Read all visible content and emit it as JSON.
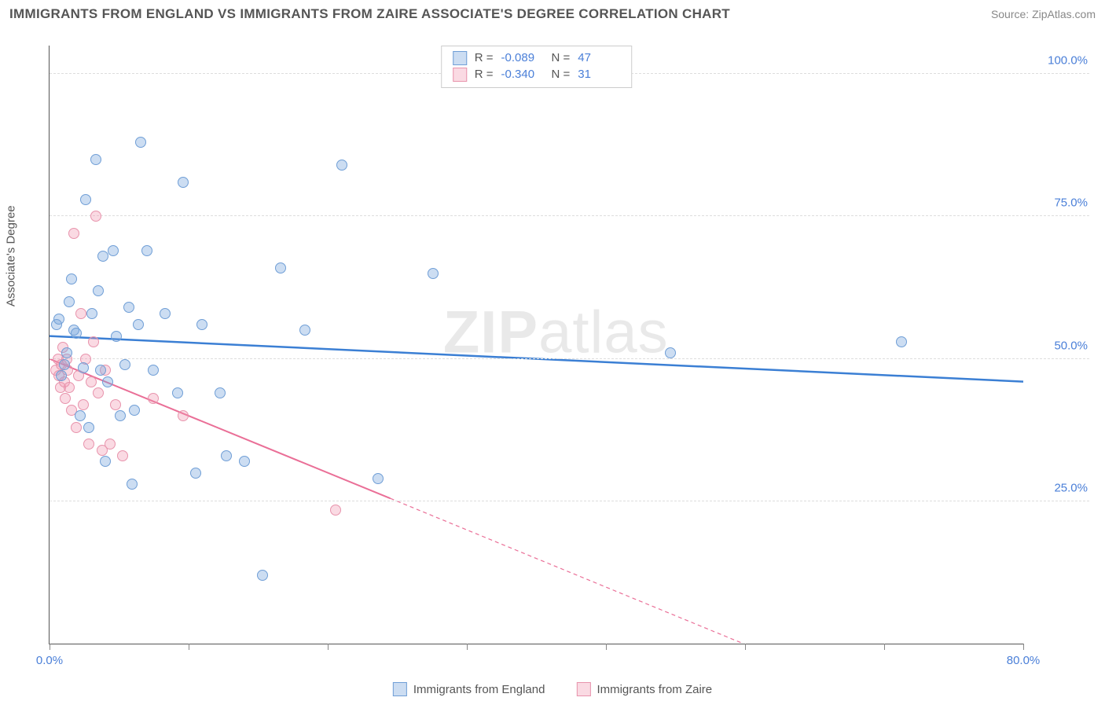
{
  "header": {
    "title": "IMMIGRANTS FROM ENGLAND VS IMMIGRANTS FROM ZAIRE ASSOCIATE'S DEGREE CORRELATION CHART",
    "source_label": "Source: ",
    "source_value": "ZipAtlas.com"
  },
  "axes": {
    "y_label": "Associate's Degree",
    "x_min": 0.0,
    "x_max": 80.0,
    "y_min": 0.0,
    "y_max": 105.0,
    "y_ticks": [
      {
        "v": 25.0,
        "label": "25.0%"
      },
      {
        "v": 50.0,
        "label": "50.0%"
      },
      {
        "v": 75.0,
        "label": "75.0%"
      },
      {
        "v": 100.0,
        "label": "100.0%"
      }
    ],
    "x_ticks": [
      {
        "v": 0.0,
        "label": "0.0%"
      },
      {
        "v": 11.43,
        "label": ""
      },
      {
        "v": 22.86,
        "label": ""
      },
      {
        "v": 34.29,
        "label": ""
      },
      {
        "v": 45.71,
        "label": ""
      },
      {
        "v": 57.14,
        "label": ""
      },
      {
        "v": 68.57,
        "label": ""
      },
      {
        "v": 80.0,
        "label": "80.0%"
      }
    ],
    "grid_color": "#dddddd",
    "axis_color": "#555555",
    "tick_label_color": "#4a7fd8"
  },
  "series": {
    "england": {
      "label": "Immigrants from England",
      "marker_fill": "rgba(120,165,220,0.38)",
      "marker_stroke": "#6f9ed6",
      "trend_color": "#3b7fd4",
      "trend_width": 2.5,
      "trend": {
        "x1": 0.0,
        "y1": 54.0,
        "x2": 80.0,
        "y2": 46.0,
        "dash": "none"
      },
      "R": "-0.089",
      "N": "47",
      "points": [
        [
          0.6,
          56
        ],
        [
          0.8,
          57
        ],
        [
          1.0,
          47
        ],
        [
          1.2,
          49
        ],
        [
          1.4,
          51
        ],
        [
          1.6,
          60
        ],
        [
          1.8,
          64
        ],
        [
          2.0,
          55
        ],
        [
          2.2,
          54.5
        ],
        [
          2.5,
          40
        ],
        [
          2.8,
          48.5
        ],
        [
          3.0,
          78
        ],
        [
          3.2,
          38
        ],
        [
          3.5,
          58
        ],
        [
          3.8,
          85
        ],
        [
          4.0,
          62
        ],
        [
          4.2,
          48
        ],
        [
          4.4,
          68
        ],
        [
          4.6,
          32
        ],
        [
          4.8,
          46
        ],
        [
          5.2,
          69
        ],
        [
          5.5,
          54
        ],
        [
          5.8,
          40
        ],
        [
          6.2,
          49
        ],
        [
          6.5,
          59
        ],
        [
          7.0,
          41
        ],
        [
          7.3,
          56
        ],
        [
          7.5,
          88
        ],
        [
          6.8,
          28
        ],
        [
          8.0,
          69
        ],
        [
          8.5,
          48
        ],
        [
          9.5,
          58
        ],
        [
          10.5,
          44
        ],
        [
          11.0,
          81
        ],
        [
          12.0,
          30
        ],
        [
          12.5,
          56
        ],
        [
          14.0,
          44
        ],
        [
          14.5,
          33
        ],
        [
          16.0,
          32
        ],
        [
          17.5,
          12
        ],
        [
          19.0,
          66
        ],
        [
          21.0,
          55
        ],
        [
          24.0,
          84
        ],
        [
          27.0,
          29
        ],
        [
          31.5,
          65
        ],
        [
          51.0,
          51
        ],
        [
          70.0,
          53
        ]
      ]
    },
    "zaire": {
      "label": "Immigrants from Zaire",
      "marker_fill": "rgba(240,150,175,0.35)",
      "marker_stroke": "#e893ac",
      "trend_color": "#ea6f97",
      "trend_width": 2,
      "trend_solid": {
        "x1": 0.0,
        "y1": 50.0,
        "x2": 28.0,
        "y2": 25.5
      },
      "trend_dash": {
        "x1": 28.0,
        "y1": 25.5,
        "x2": 57.0,
        "y2": 0.0
      },
      "R": "-0.340",
      "N": "31",
      "points": [
        [
          0.5,
          48
        ],
        [
          0.7,
          50
        ],
        [
          0.8,
          47
        ],
        [
          0.9,
          45
        ],
        [
          1.0,
          49
        ],
        [
          1.1,
          52
        ],
        [
          1.2,
          46
        ],
        [
          1.3,
          43
        ],
        [
          1.4,
          50
        ],
        [
          1.5,
          48
        ],
        [
          1.6,
          45
        ],
        [
          1.8,
          41
        ],
        [
          2.0,
          72
        ],
        [
          2.2,
          38
        ],
        [
          2.4,
          47
        ],
        [
          2.6,
          58
        ],
        [
          2.8,
          42
        ],
        [
          3.0,
          50
        ],
        [
          3.2,
          35
        ],
        [
          3.4,
          46
        ],
        [
          3.6,
          53
        ],
        [
          3.8,
          75
        ],
        [
          4.0,
          44
        ],
        [
          4.3,
          34
        ],
        [
          4.6,
          48
        ],
        [
          5.0,
          35
        ],
        [
          5.4,
          42
        ],
        [
          6.0,
          33
        ],
        [
          8.5,
          43
        ],
        [
          11.0,
          40
        ],
        [
          23.5,
          23.5
        ]
      ]
    }
  },
  "legend_top": {
    "r_label": "R =",
    "n_label": "N ="
  },
  "watermark": {
    "bold": "ZIP",
    "light": "atlas"
  },
  "colors": {
    "bg": "#ffffff",
    "title": "#555555",
    "source": "#888888"
  }
}
